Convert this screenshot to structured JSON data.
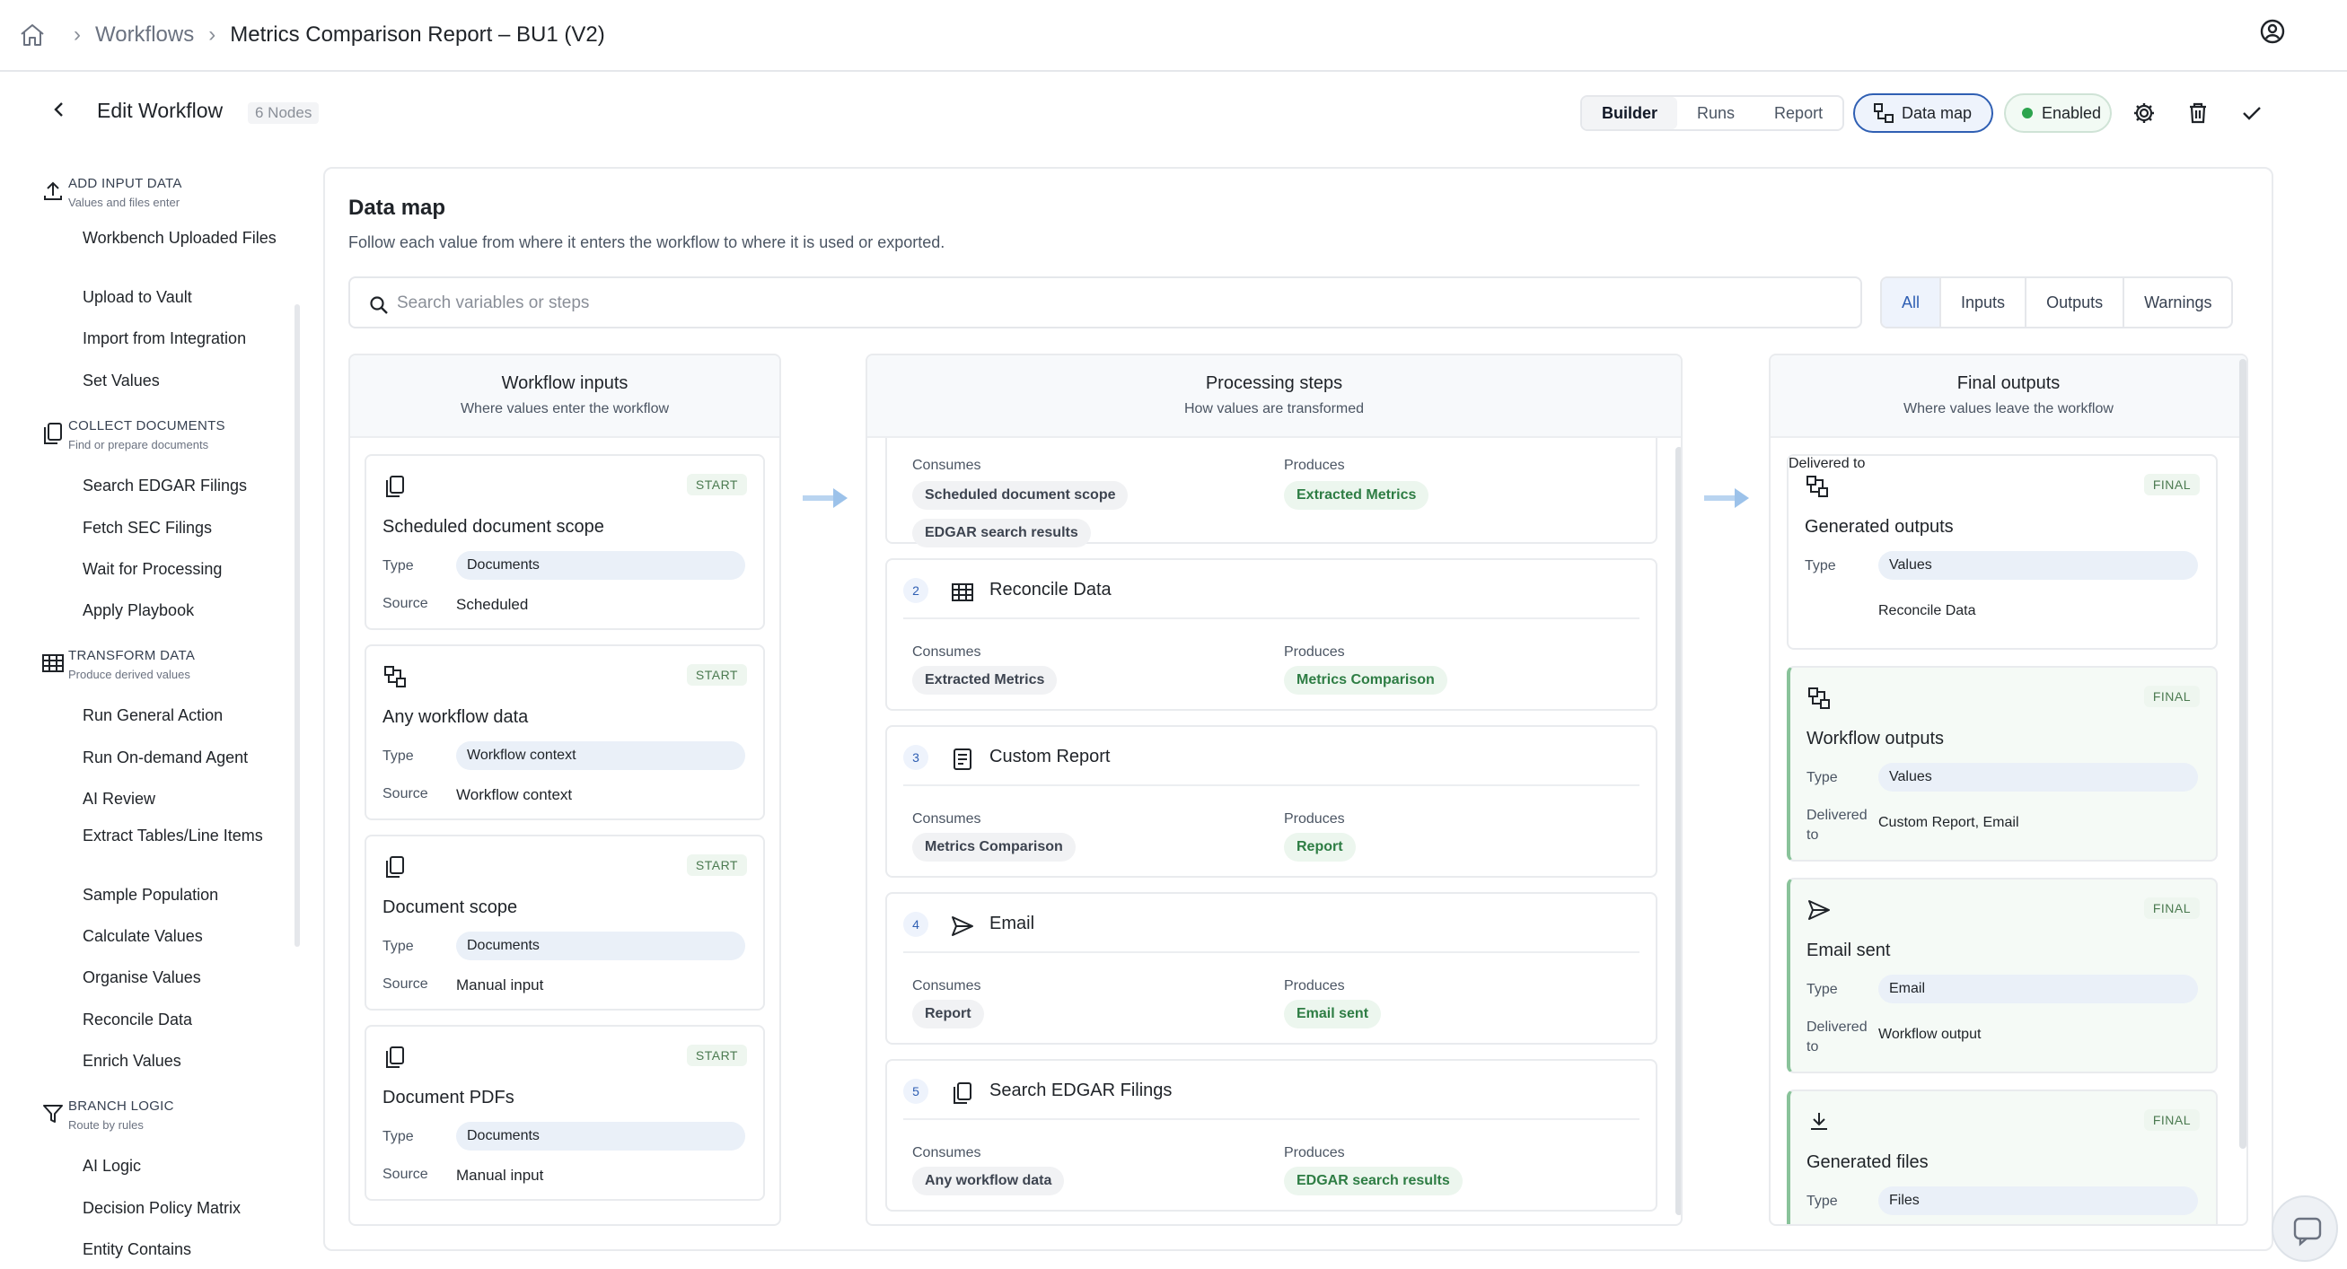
{
  "breadcrumb": {
    "items": [
      "Workflows",
      "Metrics Comparison Report – BU1 (V2)"
    ]
  },
  "edit": {
    "title": "Edit Workflow",
    "nodes": "6 Nodes",
    "tabs": [
      "Builder",
      "Runs",
      "Report"
    ],
    "active_tab": "Builder",
    "data_map_label": "Data map",
    "enabled_label": "Enabled"
  },
  "sidebar": {
    "sections": [
      {
        "title": "ADD INPUT DATA",
        "subtitle": "Values and files enter",
        "icon": "upload-icon",
        "items": [
          "Workbench Uploaded Files",
          "Upload to Vault",
          "Import from Integration",
          "Set Values"
        ]
      },
      {
        "title": "COLLECT DOCUMENTS",
        "subtitle": "Find or prepare documents",
        "icon": "documents-icon",
        "items": [
          "Search EDGAR Filings",
          "Fetch SEC Filings",
          "Wait for Processing",
          "Apply Playbook"
        ]
      },
      {
        "title": "TRANSFORM DATA",
        "subtitle": "Produce derived values",
        "icon": "table-icon",
        "items": [
          "Run General Action",
          "Run On-demand Agent",
          "AI Review",
          "Extract Tables/Line Items",
          "Sample Population",
          "Calculate Values",
          "Organise Values",
          "Reconcile Data",
          "Enrich Values"
        ]
      },
      {
        "title": "BRANCH LOGIC",
        "subtitle": "Route by rules",
        "icon": "filter-icon",
        "items": [
          "AI Logic",
          "Decision Policy Matrix",
          "Entity Contains"
        ]
      }
    ]
  },
  "datamap": {
    "title": "Data map",
    "subtitle": "Follow each value from where it enters the workflow to where it is used or exported.",
    "search_placeholder": "Search variables or steps",
    "filters": [
      "All",
      "Inputs",
      "Outputs",
      "Warnings"
    ],
    "active_filter": "All"
  },
  "inputs": {
    "title": "Workflow inputs",
    "subtitle": "Where values enter the workflow",
    "type_label": "Type",
    "source_label": "Source",
    "badge": "START",
    "cards": [
      {
        "name": "Scheduled document scope",
        "type": "Documents",
        "source": "Scheduled",
        "icon": "documents-icon"
      },
      {
        "name": "Any workflow data",
        "type": "Workflow context",
        "source": "Workflow context",
        "icon": "nodes-icon"
      },
      {
        "name": "Document scope",
        "type": "Documents",
        "source": "Manual input",
        "icon": "documents-icon"
      },
      {
        "name": "Document PDFs",
        "type": "Documents",
        "source": "Manual input",
        "icon": "documents-icon"
      }
    ]
  },
  "steps": {
    "title": "Processing steps",
    "subtitle": "How values are transformed",
    "consumes_label": "Consumes",
    "produces_label": "Produces",
    "partial": {
      "consumes": [
        "Scheduled document scope",
        "EDGAR search results"
      ],
      "produces": [
        "Extracted Metrics"
      ]
    },
    "items": [
      {
        "num": "2",
        "name": "Reconcile Data",
        "icon": "table-icon",
        "consumes": [
          "Extracted Metrics"
        ],
        "produces": [
          "Metrics Comparison"
        ]
      },
      {
        "num": "3",
        "name": "Custom Report",
        "icon": "report-icon",
        "consumes": [
          "Metrics Comparison"
        ],
        "produces": [
          "Report"
        ]
      },
      {
        "num": "4",
        "name": "Email",
        "icon": "send-icon",
        "consumes": [
          "Report"
        ],
        "produces": [
          "Email sent"
        ]
      },
      {
        "num": "5",
        "name": "Search EDGAR Filings",
        "icon": "documents-icon",
        "consumes": [
          "Any workflow data"
        ],
        "produces": [
          "EDGAR search results"
        ]
      }
    ]
  },
  "outputs": {
    "title": "Final outputs",
    "subtitle": "Where values leave the workflow",
    "type_label": "Type",
    "delivered_label": "Delivered to",
    "badge": "FINAL",
    "cards": [
      {
        "name": "Generated outputs",
        "type": "Values",
        "delivered": "Reconcile Data",
        "icon": "nodes-icon",
        "highlight": false
      },
      {
        "name": "Workflow outputs",
        "type": "Values",
        "delivered": "Custom Report, Email",
        "icon": "nodes-icon",
        "highlight": true
      },
      {
        "name": "Email sent",
        "type": "Email",
        "delivered": "Workflow output",
        "icon": "send-icon",
        "highlight": true
      },
      {
        "name": "Generated files",
        "type": "Files",
        "delivered": "",
        "icon": "download-icon",
        "highlight": true
      }
    ]
  },
  "colors": {
    "accent": "#2f5fb3",
    "success": "#2da44e",
    "final_border": "#89c39a"
  }
}
